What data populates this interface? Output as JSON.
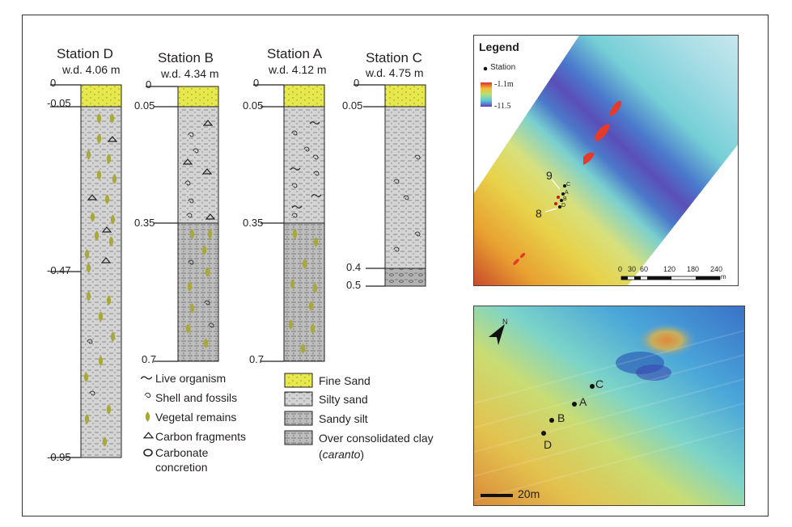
{
  "stations": [
    {
      "name": "Station D",
      "wd": "w.d. 4.06 m",
      "depths": [
        "0",
        "-0.05",
        "-0.47",
        "-0.95"
      ]
    },
    {
      "name": "Station B",
      "wd": "w.d. 4.34 m",
      "depths": [
        "0",
        "0.05",
        "0.35",
        "0.7"
      ]
    },
    {
      "name": "Station A",
      "wd": "w.d. 4.12 m",
      "depths": [
        "0",
        "0.05",
        "0.35",
        "0.7"
      ]
    },
    {
      "name": "Station C",
      "wd": "w.d. 4.75 m",
      "depths": [
        "0",
        "0.05",
        "0.4",
        "0.5"
      ]
    }
  ],
  "symbol_legend": [
    "Live organism",
    "Shell and fossils",
    "Vegetal remains",
    "Carbon fragments",
    "Carbonate",
    "concretion"
  ],
  "lithology_legend": [
    "Fine Sand",
    "Silty  sand",
    "Sandy silt",
    "Over consolidated clay",
    "caranto"
  ],
  "colors": {
    "fine_sand": "#e6e84c",
    "silty_sand": "#cfcfcf",
    "sandy_silt": "#bdbdbd",
    "clay": "#b3b3b3",
    "vegetal": "#a9a83a"
  },
  "map1": {
    "legend_title": "Legend",
    "station_label": "Station",
    "scale_max": "-1.1m",
    "scale_min": "-11.5",
    "markers": [
      "9",
      "8"
    ],
    "station_letters": [
      "C",
      "A",
      "B",
      "D"
    ],
    "scalebar": [
      "0",
      "30",
      "60",
      "120",
      "180",
      "240",
      "m"
    ]
  },
  "map2": {
    "north": "N",
    "stations": [
      "C",
      "A",
      "B",
      "D"
    ],
    "scale": "20m"
  }
}
